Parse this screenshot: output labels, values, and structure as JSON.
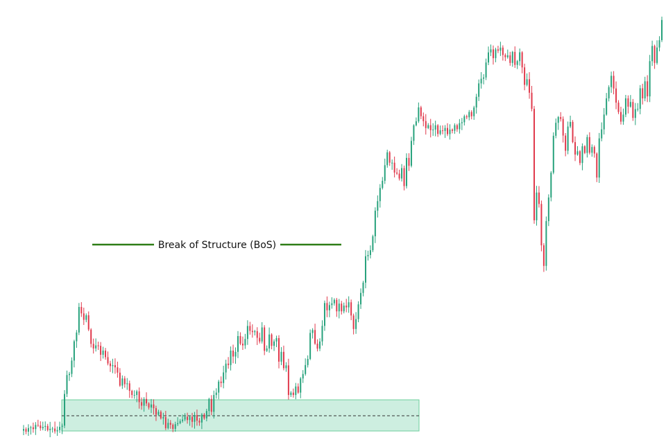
{
  "chart_data": {
    "type": "candlestick",
    "title": "",
    "xlabel": "",
    "ylabel": "",
    "grid": false,
    "legend": "none",
    "colors": {
      "up": "#26a17b",
      "down": "#e0394b",
      "zone_fill": "#cdeee0",
      "zone_border": "#6ccf9d",
      "bos_line": "#2e7d16",
      "dashed_line": "#333333"
    },
    "candles_close": [
      10.5,
      8,
      11.5,
      12.2,
      10.5,
      14.5,
      14,
      11.3,
      12.6,
      13.5,
      9.5,
      10.8,
      11,
      8.3,
      9.5,
      12.6,
      13.8,
      44.3,
      62.5,
      63.6,
      76.4,
      95,
      103.4,
      128,
      121.8,
      115.6,
      120,
      106.3,
      92.5,
      88.1,
      91,
      90.6,
      82,
      86,
      79.7,
      73.6,
      71.1,
      72,
      69.9,
      64.8,
      52.3,
      59.2,
      53.7,
      54.5,
      47.3,
      43.3,
      43.3,
      46.8,
      36.4,
      33,
      39.5,
      35.2,
      31.2,
      34.2,
      30.6,
      24.3,
      27.1,
      20.8,
      22,
      11.4,
      16.5,
      14.7,
      10.7,
      15.2,
      16.2,
      18.2,
      19.7,
      22.4,
      19.2,
      22.4,
      17.5,
      24,
      18.6,
      16.8,
      24.5,
      20.8,
      27.9,
      39.5,
      27.1,
      43.3,
      45.6,
      56.2,
      54.8,
      65,
      73.5,
      72.1,
      86,
      80.3,
      84.8,
      100,
      92.7,
      91,
      97.2,
      109.7,
      105,
      103.8,
      104.7,
      98.3,
      94.8,
      108.3,
      85.8,
      88.1,
      101.5,
      90.6,
      94.8,
      98,
      75.4,
      84.8,
      69.1,
      71.8,
      43.3,
      45.6,
      43.3,
      51.5,
      45.6,
      59.2,
      63.5,
      72.1,
      78,
      103,
      105.8,
      92.7,
      87.9,
      94.8,
      109.8,
      131.8,
      124.8,
      129.8,
      131.5,
      134.9,
      123.8,
      131.2,
      123.8,
      129.3,
      127.6,
      132.5,
      119.8,
      106.8,
      116.3,
      130.5,
      141.5,
      151.4,
      176.8,
      178,
      182.6,
      196,
      220.6,
      229.8,
      242.5,
      249.4,
      264.4,
      276.8,
      266.8,
      266.8,
      257.3,
      256.3,
      251.6,
      261.6,
      244.3,
      271.4,
      263.8,
      287.8,
      302.8,
      306.6,
      320,
      311.5,
      306.8,
      300.1,
      302.9,
      298.1,
      298.7,
      302.8,
      294.5,
      297.9,
      297.3,
      300.2,
      294.3,
      298.7,
      297.5,
      302.9,
      299,
      304.8,
      305.7,
      311.5,
      310.5,
      315.6,
      311.5,
      319.9,
      330.2,
      343.1,
      347.6,
      348.8,
      363.2,
      372.9,
      375.8,
      367.4,
      375.8,
      374.6,
      377.5,
      370.4,
      368.3,
      370.1,
      362.8,
      373.4,
      360.9,
      364.5,
      373,
      358.5,
      341.7,
      347.1,
      334.1,
      318.6,
      211.4,
      238.1,
      227.1,
      187.3,
      167.5,
      210.6,
      233.3,
      257.2,
      292.7,
      305.2,
      310.7,
      308.9,
      292.9,
      278.3,
      301.6,
      306,
      286.6,
      274.6,
      277.8,
      266.5,
      282.6,
      276.2,
      291.4,
      276.4,
      281.9,
      275.6,
      252.5,
      290.2,
      298.9,
      313.1,
      328.7,
      339.5,
      350.4,
      338.2,
      324.6,
      315.6,
      306.3,
      313.1,
      328.7,
      320.7,
      325.2,
      309.9,
      318.3,
      318.6,
      338.4,
      328.7,
      345.1,
      330.6,
      364.5,
      379.1,
      362.8,
      377.6,
      384.7,
      404.1
    ]
  },
  "annotations": {
    "bos_label": "Break of Structure (BoS)"
  }
}
